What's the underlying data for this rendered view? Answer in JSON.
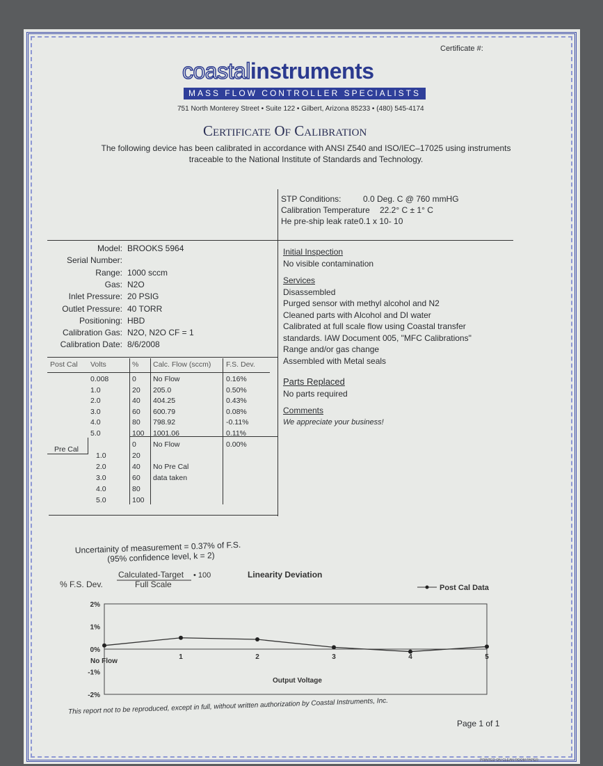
{
  "header": {
    "certificate_label": "Certificate #:",
    "logo": {
      "outline_part": "coastal",
      "bold_part": "instruments"
    },
    "tagline": "MASS FLOW CONTROLLER SPECIALISTS",
    "address": "751 North Monterey Street • Suite 122 • Gilbert, Arizona 85233 • (480) 545-4174",
    "title": "Certificate Of Calibration",
    "intro_line1": "The following device has been calibrated in accordance with ANSI Z540 and ISO/IEC–17025 using instruments",
    "intro_line2": "traceable to the National Institute of Standards and Technology."
  },
  "conditions": [
    {
      "label": "STP Conditions:",
      "value": "0.0  Deg. C @ 760 mmHG"
    },
    {
      "label": "Calibration Temperature",
      "value": "22.2° C ± 1° C"
    },
    {
      "label": "He pre-ship leak rate",
      "value": "0.1 x 10- 10"
    }
  ],
  "device": [
    {
      "label": "Model:",
      "value": "BROOKS 5964"
    },
    {
      "label": "Serial Number:",
      "value": ""
    },
    {
      "label": "Range:",
      "value": "1000 sccm"
    },
    {
      "label": "Gas:",
      "value": "N2O"
    },
    {
      "label": "Inlet Pressure:",
      "value": "20 PSIG"
    },
    {
      "label": "Outlet Pressure:",
      "value": "40 TORR"
    },
    {
      "label": "Positioning:",
      "value": "HBD"
    },
    {
      "label": "Calibration Gas:",
      "value": "N2O, N2O  CF  = 1"
    },
    {
      "label": "Calibration Date:",
      "value": "8/6/2008"
    }
  ],
  "table": {
    "headers": [
      "Post Cal",
      "Volts",
      "%",
      "Calc. Flow (sccm)",
      "F.S. Dev."
    ],
    "post_cal": [
      [
        "0.008",
        "0",
        "No Flow",
        "0.16%"
      ],
      [
        "1.0",
        "20",
        "205.0",
        "0.50%"
      ],
      [
        "2.0",
        "40",
        "404.25",
        "0.43%"
      ],
      [
        "3.0",
        "60",
        "600.79",
        "0.08%"
      ],
      [
        "4.0",
        "80",
        "798.92",
        "-0.11%"
      ],
      [
        "5.0",
        "100",
        "1001.06",
        "0.11%"
      ]
    ],
    "pre_cal_label": "Pre Cal",
    "pre_cal": [
      [
        "",
        "0",
        "No Flow",
        "0.00%"
      ],
      [
        "1.0",
        "20",
        "",
        ""
      ],
      [
        "2.0",
        "40",
        "No Pre Cal",
        ""
      ],
      [
        "3.0",
        "60",
        "data taken",
        ""
      ],
      [
        "4.0",
        "80",
        "",
        ""
      ],
      [
        "5.0",
        "100",
        "",
        ""
      ]
    ]
  },
  "inspection": {
    "initial_heading": "Initial Inspection",
    "initial": [
      "No visible contamination"
    ],
    "services_heading": "Services",
    "services": [
      "Disassembled",
      "Purged sensor with methyl alcohol and N2",
      "Cleaned parts with Alcohol and DI water",
      "Calibrated at full scale flow using Coastal transfer standards.  IAW Document 005, \"MFC Calibrations\"",
      "Range and/or gas change",
      "Assembled with Metal seals"
    ],
    "parts_heading": "Parts Replaced",
    "parts": [
      "No parts required"
    ],
    "comments_heading": "Comments",
    "comments": [
      "We appreciate your business!"
    ]
  },
  "uncertainty": {
    "line1": "Uncertainity of measurement = 0.37% of F.S.",
    "line2": "(95% confidence level, k = 2)"
  },
  "chart_data": {
    "type": "line",
    "title": "Linearity Deviation",
    "ylabel": "% F.S. Dev.",
    "formula_numerator": "Calculated-Target",
    "formula_multiplier": "• 100",
    "formula_denominator": "Full Scale",
    "xlabel": "Output Voltage",
    "x_start_label": "No Flow",
    "x_ticks": [
      "1",
      "2",
      "3",
      "4",
      "5"
    ],
    "y_ticks": [
      "2%",
      "1%",
      "0%",
      "-1%",
      "-2%"
    ],
    "xlim": [
      0,
      5
    ],
    "ylim": [
      -2,
      2
    ],
    "legend": "top-right",
    "series": [
      {
        "name": "Post Cal Data",
        "x": [
          0,
          1,
          2,
          3,
          4,
          5
        ],
        "y": [
          0.16,
          0.5,
          0.43,
          0.08,
          -0.11,
          0.11
        ]
      }
    ]
  },
  "footer": {
    "disclaimer": "This report not to be reproduced, except in full, without written authorization by Coastal Instruments, Inc.",
    "page": "Page 1 of 1",
    "paper_note": "PRINTED ON CLEAN ROOM PAPER"
  },
  "colors": {
    "brand": "#2f3f9a",
    "paper": "#e8eae7",
    "border": "#3f4fa8"
  }
}
